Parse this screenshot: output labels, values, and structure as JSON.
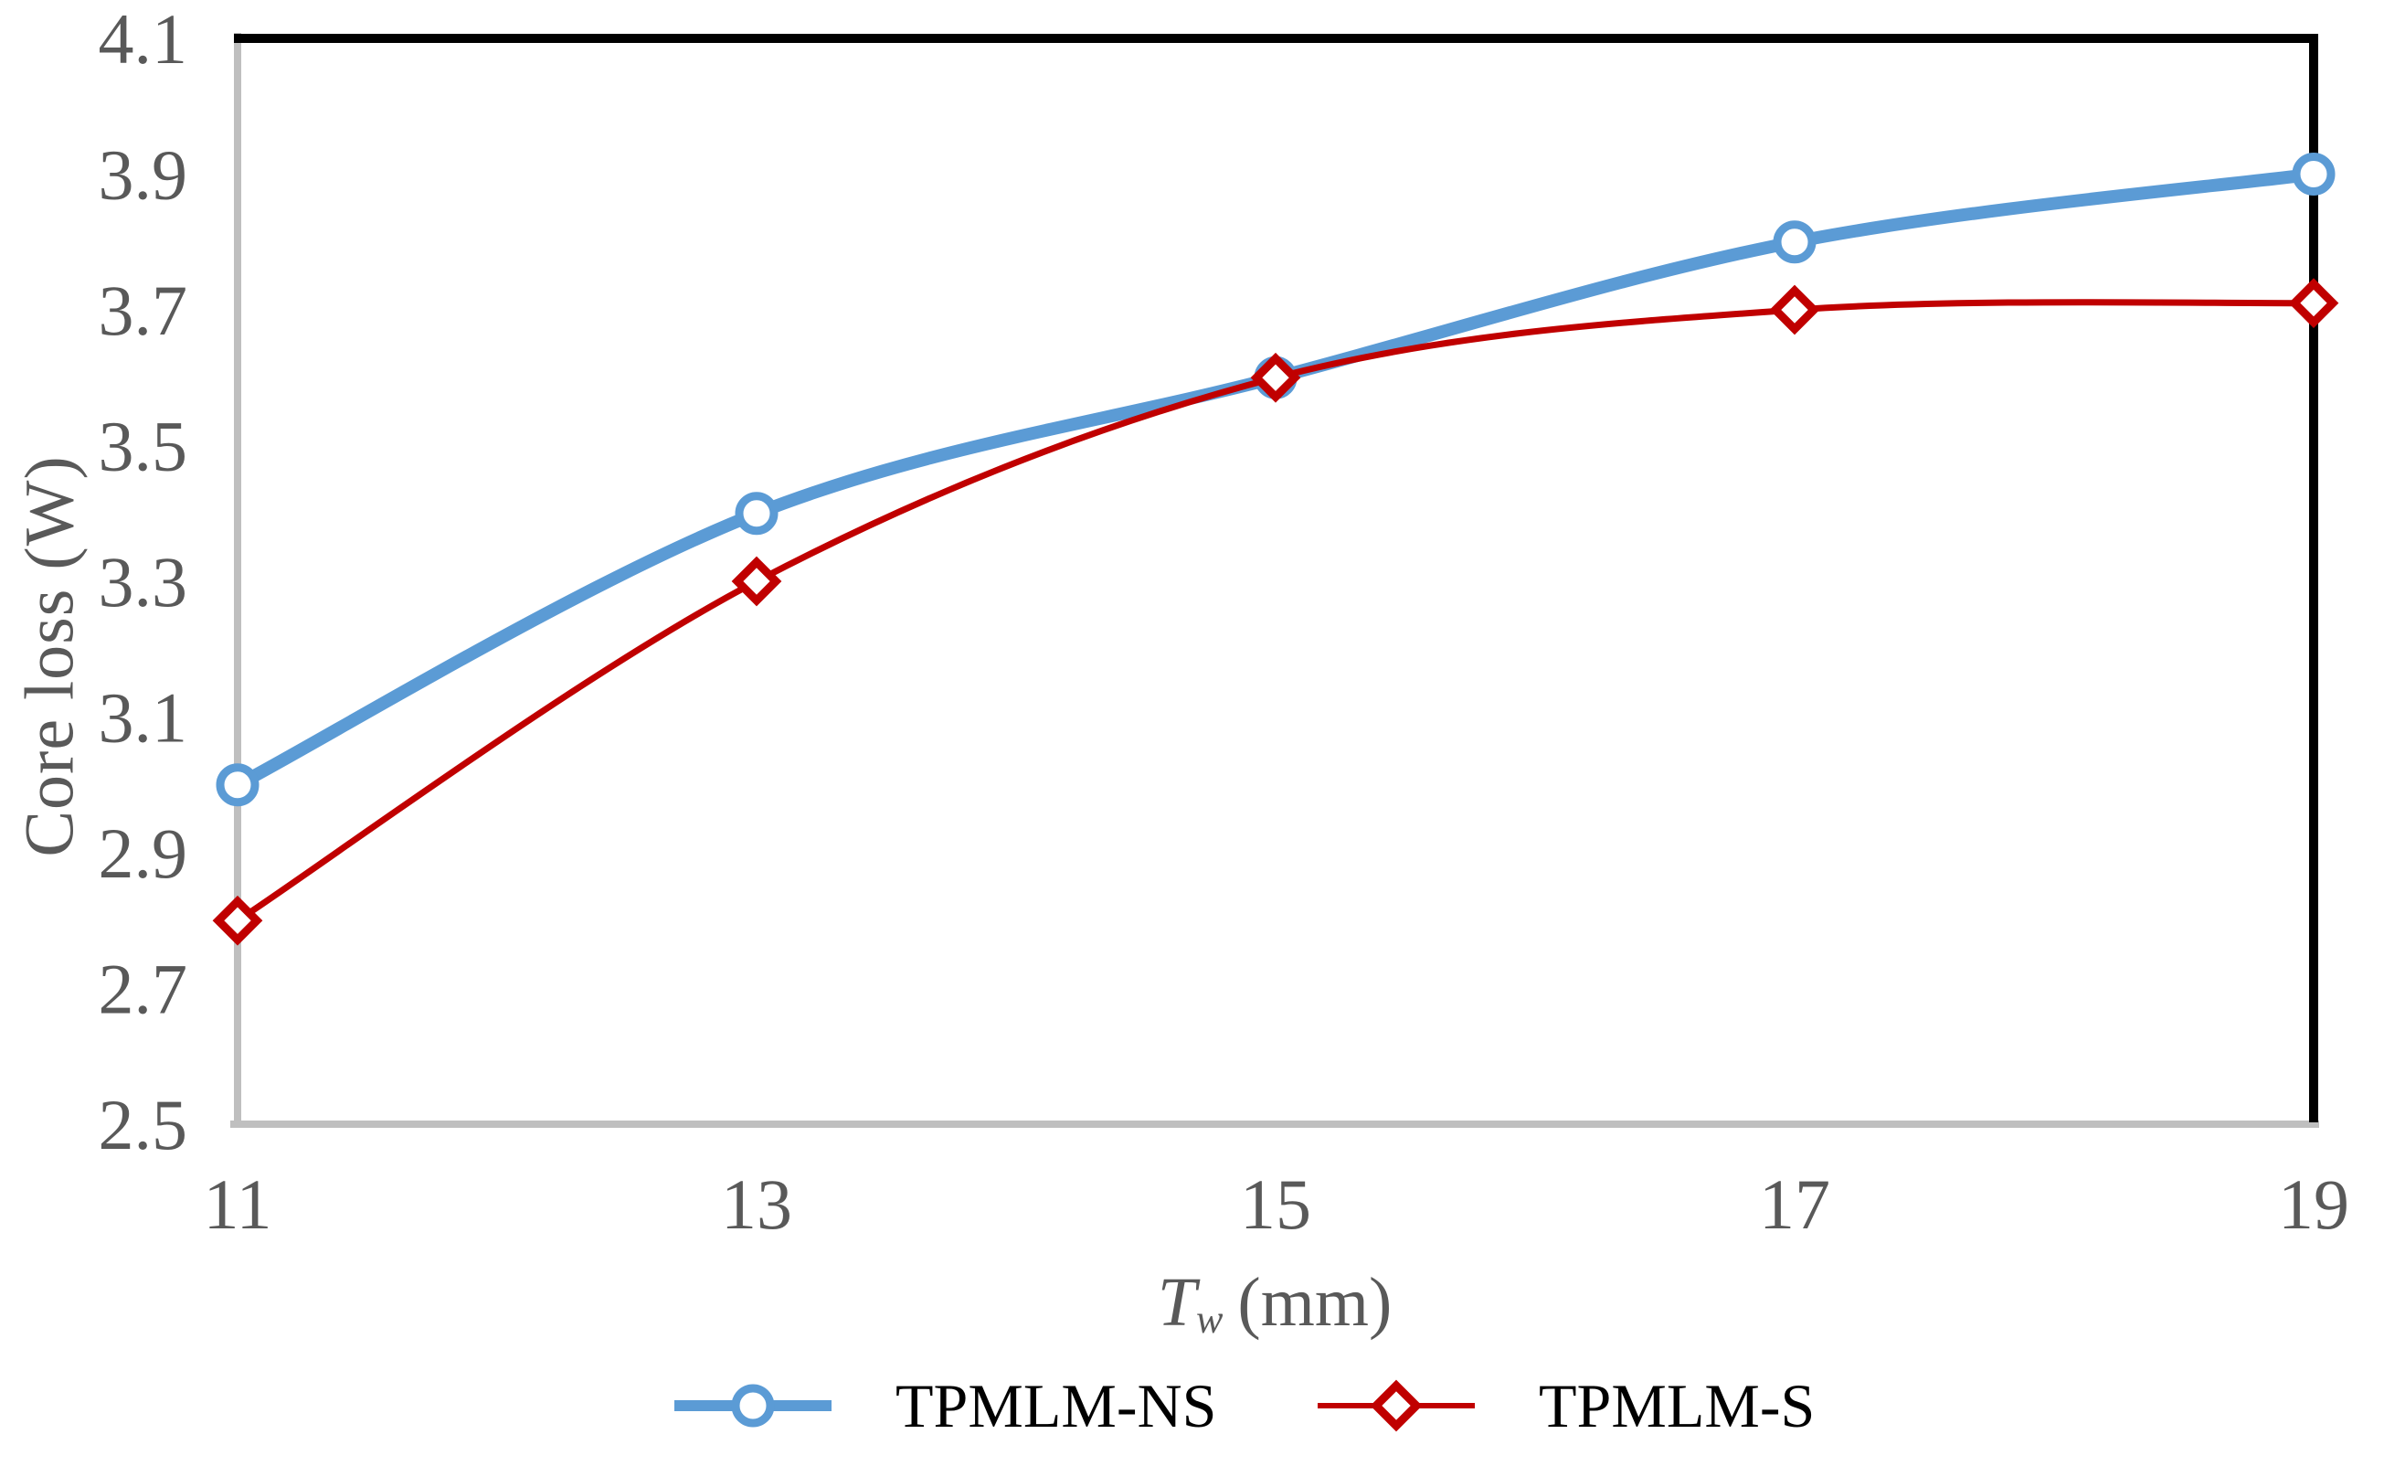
{
  "chart_data": {
    "type": "line",
    "title": "",
    "ylabel": "Core loss (W)",
    "xlabel": {
      "symbol": "T",
      "subscript": "w",
      "unit": "(mm)"
    },
    "x": [
      11,
      13,
      15,
      17,
      19
    ],
    "x_tick_labels": [
      "11",
      "13",
      "15",
      "17",
      "19"
    ],
    "yticks": [
      2.5,
      2.7,
      2.9,
      3.1,
      3.3,
      3.5,
      3.7,
      3.9,
      4.1
    ],
    "y_tick_labels": [
      "2.5",
      "2.7",
      "2.9",
      "3.1",
      "3.3",
      "3.5",
      "3.7",
      "3.9",
      "4.1"
    ],
    "xlim": [
      11,
      19
    ],
    "ylim": [
      2.5,
      4.1
    ],
    "grid": false,
    "smooth_lines": true,
    "legend_position": "bottom",
    "series": [
      {
        "name": "TPMLM-NS",
        "color": "#5b9bd5",
        "marker": "circle",
        "line_width": 14,
        "values": [
          3.0,
          3.4,
          3.6,
          3.8,
          3.9
        ]
      },
      {
        "name": "TPMLM-S",
        "color": "#c00000",
        "marker": "diamond",
        "line_width": 7,
        "values": [
          2.8,
          3.3,
          3.6,
          3.7,
          3.71
        ]
      }
    ]
  },
  "style": {
    "axis_line_color": "#bfbfbf",
    "plot_border_color": "#000000",
    "tick_text_color": "#595959",
    "legend_text_color": "#000000",
    "background": "#ffffff"
  }
}
